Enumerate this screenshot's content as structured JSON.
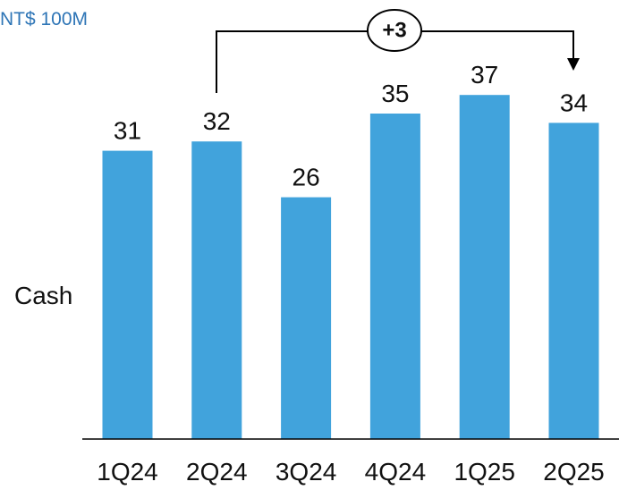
{
  "chart_data": {
    "type": "bar",
    "unit_label": "NT$ 100M",
    "ylabel": "Cash",
    "categories": [
      "1Q24",
      "2Q24",
      "3Q24",
      "4Q24",
      "1Q25",
      "2Q25"
    ],
    "series": [
      {
        "values": [
          31,
          32,
          26,
          35,
          37,
          34
        ],
        "color": "#41a3dc"
      }
    ],
    "ylim": [
      0,
      40
    ],
    "grid": false,
    "legend": "none",
    "annotation": {
      "text": "+3",
      "from": "2Q24",
      "to": "2Q25"
    }
  }
}
